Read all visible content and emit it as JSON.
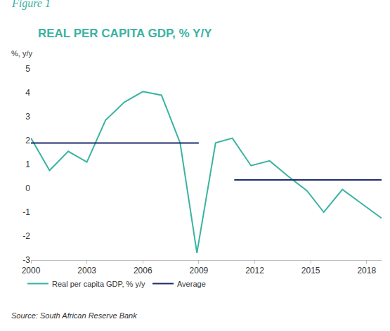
{
  "chart_data": {
    "type": "line",
    "title": "REAL PER CAPITA GDP, % Y/Y",
    "y_label": "%, y/y",
    "annotations": [
      {
        "text": "Figure 1"
      },
      {
        "text": "Source: South African Reserve Bank"
      }
    ],
    "series": [
      {
        "name": "Real per capita GDP, % y/y",
        "color": "#3ab3a2",
        "x": [
          2000,
          2001,
          2002,
          2003,
          2004,
          2005,
          2006,
          2007,
          2008,
          2008.9,
          2009.9,
          2010.8,
          2011.8,
          2012.8,
          2013.8,
          2014.8,
          2015.7,
          2016.7,
          2018.8
        ],
        "values": [
          2.1,
          0.75,
          1.55,
          1.1,
          2.85,
          3.6,
          4.05,
          3.9,
          1.9,
          -2.7,
          1.9,
          2.1,
          0.95,
          1.15,
          0.5,
          -0.1,
          -1.0,
          -0.05,
          -1.25
        ]
      },
      {
        "name": "Average",
        "color": "#1f2d6b",
        "x": [
          2000,
          2009
        ],
        "values": [
          1.9,
          1.9
        ]
      },
      {
        "name": "Average",
        "color": "#1f2d6b",
        "x": [
          2010.9,
          2018.8
        ],
        "values": [
          0.35,
          0.35
        ]
      }
    ],
    "xlim": [
      2000,
      2018.8
    ],
    "xticks": [
      2000,
      2003,
      2006,
      2009,
      2012,
      2015,
      2018
    ],
    "ylim": [
      -3,
      5
    ],
    "yticks": [
      -3,
      -2,
      -1,
      0,
      1,
      2,
      3,
      4,
      5
    ],
    "grid": false,
    "legend": "bottom"
  }
}
